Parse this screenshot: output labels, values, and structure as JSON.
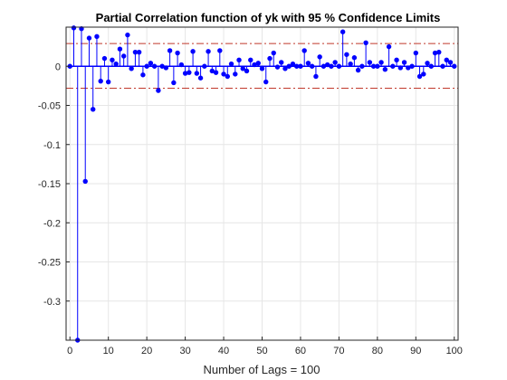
{
  "chart_data": {
    "type": "stem",
    "title": "Partial Correlation function of yk with 95 % Confidence Limits",
    "xlabel": "Number of Lags = 100",
    "ylabel": "",
    "xlim": [
      -1,
      101
    ],
    "ylim": [
      -0.35,
      0.05
    ],
    "xticks": [
      0,
      10,
      20,
      30,
      40,
      50,
      60,
      70,
      80,
      90,
      100
    ],
    "yticks": [
      0,
      -0.05,
      -0.1,
      -0.15,
      -0.2,
      -0.25,
      -0.3
    ],
    "ytick_labels": [
      "0",
      "-0.05",
      "-0.1",
      "-0.15",
      "-0.2",
      "-0.25",
      "-0.3"
    ],
    "grid": true,
    "confidence_limits": [
      0.029,
      -0.028
    ],
    "x": [
      0,
      1,
      2,
      3,
      4,
      5,
      6,
      7,
      8,
      9,
      10,
      11,
      12,
      13,
      14,
      15,
      16,
      17,
      18,
      19,
      20,
      21,
      22,
      23,
      24,
      25,
      26,
      27,
      28,
      29,
      30,
      31,
      32,
      33,
      34,
      35,
      36,
      37,
      38,
      39,
      40,
      41,
      42,
      43,
      44,
      45,
      46,
      47,
      48,
      49,
      50,
      51,
      52,
      53,
      54,
      55,
      56,
      57,
      58,
      59,
      60,
      61,
      62,
      63,
      64,
      65,
      66,
      67,
      68,
      69,
      70,
      71,
      72,
      73,
      74,
      75,
      76,
      77,
      78,
      79,
      80,
      81,
      82,
      83,
      84,
      85,
      86,
      87,
      88,
      89,
      90,
      91,
      92,
      93,
      94,
      95,
      96,
      97,
      98,
      99,
      100
    ],
    "values": [
      0,
      0.049,
      -0.35,
      0.048,
      -0.147,
      0.036,
      -0.055,
      0.038,
      -0.019,
      0.01,
      -0.02,
      0.008,
      0.003,
      0.022,
      0.013,
      0.04,
      -0.003,
      0.018,
      0.018,
      -0.011,
      0.0,
      0.004,
      0.0,
      -0.031,
      0.0,
      -0.002,
      0.02,
      -0.021,
      0.017,
      0.002,
      -0.009,
      -0.008,
      0.019,
      -0.009,
      -0.015,
      0.0,
      0.019,
      -0.006,
      -0.008,
      0.02,
      -0.01,
      -0.013,
      0.003,
      -0.01,
      0.008,
      -0.003,
      -0.006,
      0.008,
      0.002,
      0.004,
      -0.003,
      -0.02,
      0.01,
      0.017,
      -0.001,
      0.005,
      -0.003,
      0.0,
      0.003,
      0.0,
      0.0,
      0.02,
      0.004,
      0.0,
      -0.013,
      0.012,
      0.0,
      0.002,
      0.0,
      0.005,
      0.0,
      0.044,
      0.015,
      0.003,
      0.011,
      -0.005,
      0.0,
      0.03,
      0.005,
      0.0,
      0.0,
      0.005,
      -0.004,
      0.025,
      0.0,
      0.008,
      -0.002,
      0.005,
      -0.002,
      0.0,
      0.017,
      -0.013,
      -0.01,
      0.004,
      0.0,
      0.017,
      0.018,
      0.0,
      0.008,
      0.005,
      0.0
    ],
    "colors": {
      "stem": "#0000ff",
      "limits": "#c0392b",
      "grid": "#e6e6e6",
      "axis": "#262626"
    }
  }
}
